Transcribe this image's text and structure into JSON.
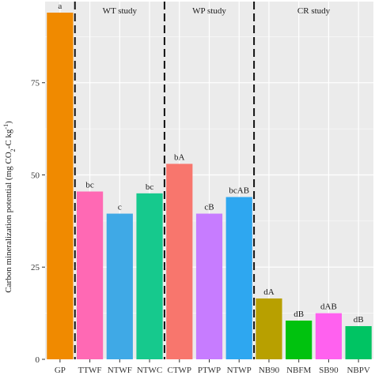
{
  "chart_data": {
    "type": "bar",
    "ylabel": "Carbon mineralization potential (mg CO2-C kg-1)",
    "ylabel_parts": {
      "prefix": "Carbon mineralization  potential  (mg CO",
      "sub": "2",
      "middle": "-C kg",
      "sup": "-1",
      "suffix": ")"
    },
    "xlabel": "",
    "ylim": [
      0,
      97
    ],
    "yticks": [
      0,
      25,
      50,
      75
    ],
    "grid": true,
    "categories": [
      "GP",
      "TTWF",
      "NTWF",
      "NTWC",
      "CTWP",
      "PTWP",
      "NTWP",
      "NB90",
      "NBFM",
      "SB90",
      "NBPV"
    ],
    "values": [
      94,
      45.5,
      39.5,
      45,
      53,
      39.5,
      44,
      16.5,
      10.5,
      12.5,
      9
    ],
    "bar_labels": [
      "a",
      "bc",
      "c",
      "bc",
      "bA",
      "cB",
      "bcAB",
      "dA",
      "dB",
      "dAB",
      "dB"
    ],
    "colors": [
      "#F08A00",
      "#FF69B4",
      "#3FA9E6",
      "#16C98D",
      "#F8766D",
      "#C77CFF",
      "#2EA7F0",
      "#B8A000",
      "#00C20E",
      "#FF61EF",
      "#00C463"
    ],
    "groups": [
      {
        "label": "WT study",
        "first_index": 1,
        "last_index": 3
      },
      {
        "label": "WP study",
        "first_index": 4,
        "last_index": 6
      },
      {
        "label": "CR study",
        "first_index": 7,
        "last_index": 10
      }
    ],
    "separators_after_index": [
      0,
      3,
      6
    ],
    "panel_color": "#EBEBEB",
    "grid_color": "#FFFFFF"
  }
}
